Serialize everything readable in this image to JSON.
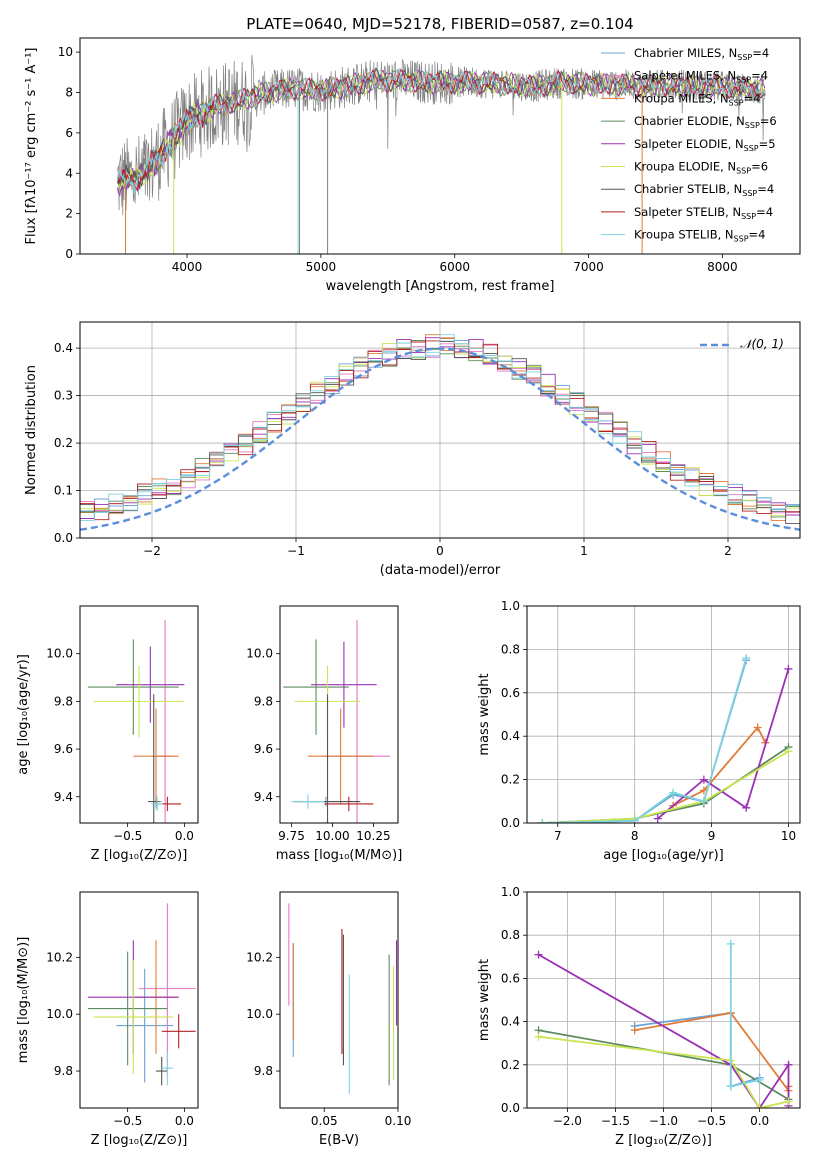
{
  "figure": {
    "title": "PLATE=0640, MJD=52178, FIBERID=0587, z=0.104"
  },
  "colors": [
    "#6ba3d6",
    "#e377c2",
    "#e07b39",
    "#5f8c5f",
    "#9b30b5",
    "#c9e652",
    "#555555",
    "#b22222",
    "#7fd3e0"
  ],
  "models": [
    {
      "label": "Chabrier MILES, N",
      "sub": "SSP",
      "tail": "=4"
    },
    {
      "label": "Salpeter MILES, N",
      "sub": "SSP",
      "tail": "=4"
    },
    {
      "label": "Kroupa MILES, N",
      "sub": "SSP",
      "tail": "=4"
    },
    {
      "label": "Chabrier ELODIE, N",
      "sub": "SSP",
      "tail": "=6"
    },
    {
      "label": "Salpeter ELODIE, N",
      "sub": "SSP",
      "tail": "=5"
    },
    {
      "label": "Kroupa ELODIE, N",
      "sub": "SSP",
      "tail": "=6"
    },
    {
      "label": "Chabrier STELIB, N",
      "sub": "SSP",
      "tail": "=4"
    },
    {
      "label": "Salpeter STELIB, N",
      "sub": "SSP",
      "tail": "=4"
    },
    {
      "label": "Kroupa STELIB, N",
      "sub": "SSP",
      "tail": "=4"
    }
  ],
  "chart_data": [
    {
      "id": "spectrum",
      "type": "line",
      "xlabel": "wavelength [Angstrom, rest frame]",
      "ylabel": "Flux [fλ10⁻¹⁷ erg cm⁻² s⁻¹ A⁻¹]",
      "xlim": [
        3200,
        8580
      ],
      "ylim": [
        0,
        10.7
      ],
      "xticks": [
        4000,
        5000,
        6000,
        7000,
        8000
      ],
      "yticks": [
        0,
        2,
        4,
        6,
        8,
        10
      ],
      "continuum": {
        "x": [
          3480,
          3600,
          3700,
          3800,
          3900,
          4000,
          4200,
          4400,
          4600,
          4800,
          5000,
          5200,
          5400,
          5600,
          5800,
          6000,
          6200,
          6400,
          6600,
          6800,
          7000,
          7200,
          7400,
          7600,
          7800,
          8000,
          8200,
          8320
        ],
        "y": [
          3.6,
          3.7,
          4.1,
          4.9,
          5.7,
          6.6,
          7.3,
          7.6,
          8.0,
          8.2,
          8.1,
          8.3,
          8.6,
          8.6,
          8.5,
          8.5,
          8.5,
          8.4,
          8.3,
          8.5,
          8.4,
          8.4,
          8.3,
          8.4,
          8.3,
          8.3,
          8.2,
          8.1
        ]
      },
      "legend": "upper right"
    },
    {
      "id": "residual-histogram",
      "type": "line",
      "xlabel": "(data-model)/error",
      "ylabel": "Normed distribution",
      "xlim": [
        -2.5,
        2.5
      ],
      "ylim": [
        0,
        0.455
      ],
      "xticks": [
        -2,
        -1,
        0,
        1,
        2
      ],
      "yticks": [
        0.0,
        0.1,
        0.2,
        0.3,
        0.4
      ],
      "legend_label": "𝒩(0, 1)",
      "reference_curve": {
        "name": "𝒩(0, 1)",
        "mean": 0,
        "sigma": 1
      },
      "grid": true
    },
    {
      "id": "age-vs-Z",
      "type": "scatter",
      "xlabel": "Z [log₁₀(Z/Z⊙)]",
      "ylabel": "age  [log₁₀(age/yr)]",
      "xlim": [
        -0.92,
        0.12
      ],
      "ylim": [
        9.29,
        10.2
      ],
      "xticks": [
        -0.5,
        0.0
      ],
      "yticks": [
        9.4,
        9.6,
        9.8,
        10.0
      ],
      "points": [
        {
          "x": -0.25,
          "y": 9.38,
          "xerr": 0.05,
          "yerr": 0.03
        },
        {
          "x": -0.17,
          "y": 9.57,
          "xerr": 0.07,
          "yerr": 0.57
        },
        {
          "x": -0.25,
          "y": 9.57,
          "xerr": 0.2,
          "yerr": 0.2
        },
        {
          "x": -0.45,
          "y": 9.86,
          "xerr": 0.4,
          "yerr": 0.2
        },
        {
          "x": -0.3,
          "y": 9.87,
          "xerr": 0.3,
          "yerr": 0.16
        },
        {
          "x": -0.4,
          "y": 9.8,
          "xerr": 0.4,
          "yerr": 0.15
        },
        {
          "x": -0.27,
          "y": 9.38,
          "xerr": 0.05,
          "yerr": 0.45
        },
        {
          "x": -0.15,
          "y": 9.37,
          "xerr": 0.12,
          "yerr": 0.03
        },
        {
          "x": -0.24,
          "y": 9.37,
          "xerr": 0.05,
          "yerr": 0.03
        }
      ]
    },
    {
      "id": "age-vs-mass",
      "type": "scatter",
      "xlabel": "mass [log₁₀(M/M⊙)]",
      "ylabel": "",
      "xlim": [
        9.68,
        10.4
      ],
      "ylim": [
        9.29,
        10.2
      ],
      "xticks": [
        9.75,
        10.0,
        10.25
      ],
      "yticks": [
        9.4,
        9.6,
        9.8,
        10.0
      ],
      "points": [
        {
          "x": 9.96,
          "y": 9.38,
          "xerr": 0.2,
          "yerr": 0.02
        },
        {
          "x": 10.15,
          "y": 9.57,
          "xerr": 0.2,
          "yerr": 0.57
        },
        {
          "x": 10.05,
          "y": 9.57,
          "xerr": 0.2,
          "yerr": 0.2
        },
        {
          "x": 9.9,
          "y": 9.86,
          "xerr": 0.2,
          "yerr": 0.2
        },
        {
          "x": 10.07,
          "y": 9.87,
          "xerr": 0.2,
          "yerr": 0.18
        },
        {
          "x": 9.97,
          "y": 9.8,
          "xerr": 0.2,
          "yerr": 0.15
        },
        {
          "x": 9.97,
          "y": 9.38,
          "xerr": 0.2,
          "yerr": 0.45
        },
        {
          "x": 10.1,
          "y": 9.37,
          "xerr": 0.15,
          "yerr": 0.03
        },
        {
          "x": 9.85,
          "y": 9.38,
          "xerr": 0.1,
          "yerr": 0.03
        }
      ]
    },
    {
      "id": "mass-weight-vs-age",
      "type": "line",
      "xlabel": "age  [log₁₀(age/yr)]",
      "ylabel": "mass weight",
      "xlim": [
        6.6,
        10.15
      ],
      "ylim": [
        0,
        1.0
      ],
      "xticks": [
        7,
        8,
        9,
        10
      ],
      "yticks": [
        0.0,
        0.2,
        0.4,
        0.6,
        0.8,
        1.0
      ],
      "grid": true,
      "series": [
        {
          "color_index": 0,
          "x": [
            6.8,
            8.0,
            8.5,
            8.9,
            9.45
          ],
          "y": [
            0.0,
            0.01,
            0.13,
            0.1,
            0.75
          ]
        },
        {
          "color_index": 2,
          "x": [
            8.5,
            8.9,
            9.6,
            9.7
          ],
          "y": [
            0.08,
            0.15,
            0.44,
            0.37
          ]
        },
        {
          "color_index": 3,
          "x": [
            6.8,
            8.0,
            8.9,
            10.0
          ],
          "y": [
            0.0,
            0.02,
            0.09,
            0.35
          ]
        },
        {
          "color_index": 4,
          "x": [
            8.3,
            8.9,
            9.45,
            10.0
          ],
          "y": [
            0.02,
            0.2,
            0.07,
            0.71
          ]
        },
        {
          "color_index": 5,
          "x": [
            6.8,
            8.0,
            8.9,
            10.0
          ],
          "y": [
            0.0,
            0.02,
            0.1,
            0.33
          ]
        },
        {
          "color_index": 8,
          "x": [
            6.8,
            8.0,
            8.5,
            8.9,
            9.45
          ],
          "y": [
            0.0,
            0.01,
            0.14,
            0.1,
            0.76
          ]
        }
      ]
    },
    {
      "id": "mass-vs-Z",
      "type": "scatter",
      "xlabel": "Z [log₁₀(Z/Z⊙)]",
      "ylabel": "mass [log₁₀(M/M⊙)]",
      "xlim": [
        -0.92,
        0.12
      ],
      "ylim": [
        9.67,
        10.43
      ],
      "xticks": [
        -0.5,
        0.0
      ],
      "yticks": [
        9.8,
        10.0,
        10.2
      ],
      "points": [
        {
          "x": -0.35,
          "y": 9.96,
          "xerr": 0.25,
          "yerr": 0.2
        },
        {
          "x": -0.15,
          "y": 10.09,
          "xerr": 0.25,
          "yerr": 0.3
        },
        {
          "x": -0.25,
          "y": 10.06,
          "xerr": 0.2,
          "yerr": 0.2
        },
        {
          "x": -0.5,
          "y": 10.02,
          "xerr": 0.35,
          "yerr": 0.2
        },
        {
          "x": -0.45,
          "y": 10.06,
          "xerr": 0.4,
          "yerr": 0.2
        },
        {
          "x": -0.45,
          "y": 9.99,
          "xerr": 0.35,
          "yerr": 0.2
        },
        {
          "x": -0.2,
          "y": 9.8,
          "xerr": 0.05,
          "yerr": 0.05
        },
        {
          "x": -0.05,
          "y": 9.94,
          "xerr": 0.15,
          "yerr": 0.06
        },
        {
          "x": -0.15,
          "y": 9.81,
          "xerr": 0.05,
          "yerr": 0.06
        }
      ]
    },
    {
      "id": "mass-vs-ebv",
      "type": "scatter",
      "xlabel": "E(B-V)",
      "ylabel": "",
      "xlim": [
        0.02,
        0.1
      ],
      "ylim": [
        9.67,
        10.43
      ],
      "xticks": [
        0.05,
        0.1
      ],
      "yticks": [
        9.8,
        10.0,
        10.2
      ],
      "points": [
        {
          "x": 0.029,
          "y": 10.05,
          "yerr": 0.2
        },
        {
          "x": 0.026,
          "y": 10.21,
          "yerr": 0.18
        },
        {
          "x": 0.029,
          "y": 10.08,
          "yerr": 0.17
        },
        {
          "x": 0.094,
          "y": 9.98,
          "yerr": 0.23
        },
        {
          "x": 0.099,
          "y": 10.11,
          "yerr": 0.15
        },
        {
          "x": 0.097,
          "y": 9.97,
          "yerr": 0.2
        },
        {
          "x": 0.063,
          "y": 10.05,
          "yerr": 0.23
        },
        {
          "x": 0.062,
          "y": 10.08,
          "yerr": 0.22
        },
        {
          "x": 0.067,
          "y": 9.93,
          "yerr": 0.21
        }
      ]
    },
    {
      "id": "mass-weight-vs-Z",
      "type": "line",
      "xlabel": "Z [log₁₀(Z/Z⊙)]",
      "ylabel": "mass weight",
      "xlim": [
        -2.42,
        0.42
      ],
      "ylim": [
        0,
        1.0
      ],
      "xticks": [
        -2.0,
        -1.5,
        -1.0,
        -0.5,
        0.0
      ],
      "yticks": [
        0.0,
        0.2,
        0.4,
        0.6,
        0.8,
        1.0
      ],
      "grid": true,
      "series": [
        {
          "color_index": 0,
          "x": [
            -1.3,
            -0.3,
            -0.3,
            0.0
          ],
          "y": [
            0.38,
            0.44,
            0.1,
            0.14
          ]
        },
        {
          "color_index": 2,
          "x": [
            -1.3,
            -0.3,
            0.3,
            0.3
          ],
          "y": [
            0.36,
            0.44,
            0.08,
            0.1
          ]
        },
        {
          "color_index": 3,
          "x": [
            -2.3,
            -0.3,
            0.3
          ],
          "y": [
            0.36,
            0.2,
            0.04
          ]
        },
        {
          "color_index": 4,
          "x": [
            -2.3,
            -0.3,
            0.0,
            0.3,
            0.3
          ],
          "y": [
            0.71,
            0.2,
            0.0,
            0.2,
            0.01
          ]
        },
        {
          "color_index": 5,
          "x": [
            -2.3,
            -0.3,
            0.0,
            0.3
          ],
          "y": [
            0.33,
            0.22,
            0.0,
            0.03
          ]
        },
        {
          "color_index": 8,
          "x": [
            -0.3,
            -0.3,
            0.0
          ],
          "y": [
            0.76,
            0.1,
            0.13
          ]
        }
      ]
    }
  ]
}
